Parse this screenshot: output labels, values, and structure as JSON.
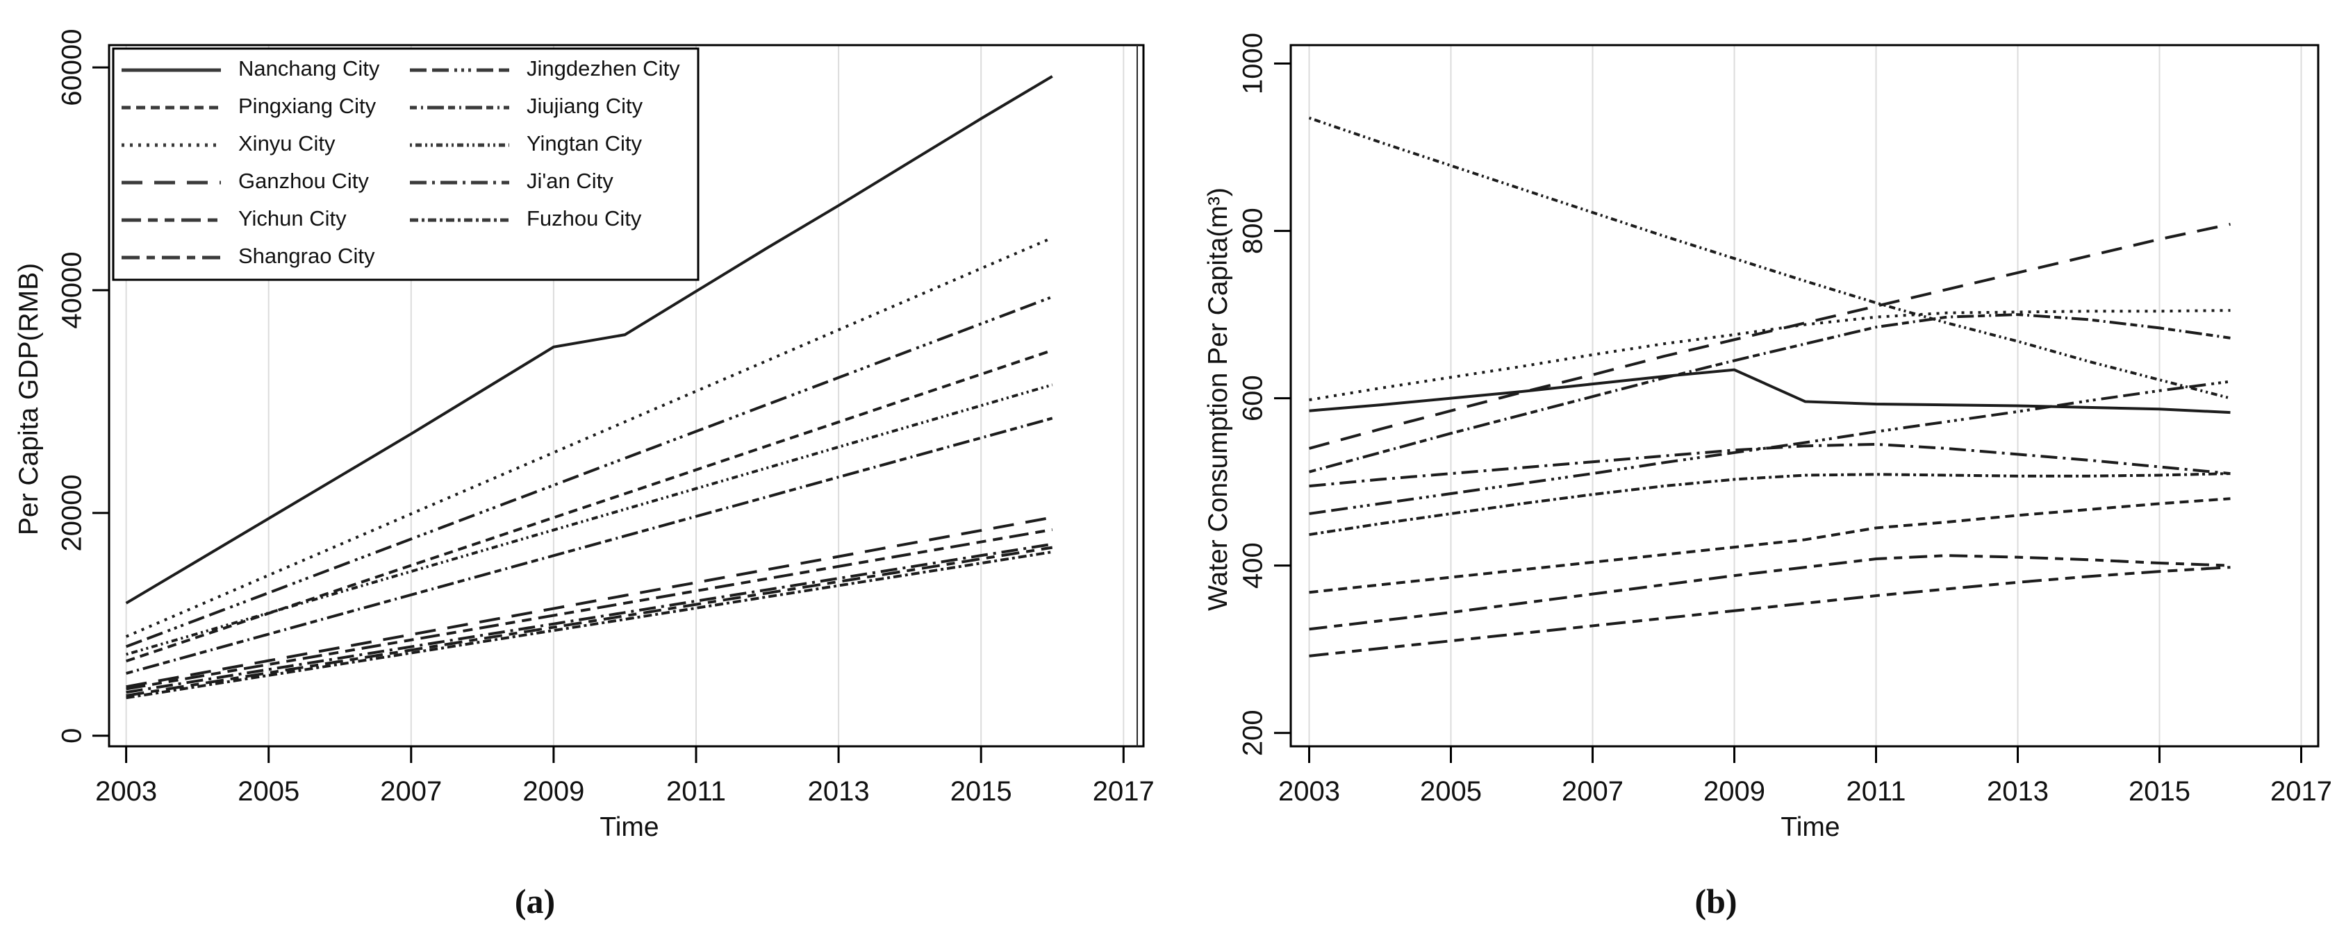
{
  "figure": {
    "background": "#ffffff",
    "line_color": "#1c1c1c",
    "grid_color": "#dcdcdc",
    "text_color": "#111111"
  },
  "chart_data": [
    {
      "type": "line",
      "caption": "(a)",
      "xlabel": "Time",
      "ylabel": "Per Capita GDP(RMB)",
      "x": [
        2003,
        2004,
        2005,
        2006,
        2007,
        2008,
        2009,
        2010,
        2011,
        2012,
        2013,
        2014,
        2015,
        2016
      ],
      "xlim": [
        2002.76,
        2017.28
      ],
      "ylim": [
        -950,
        62000
      ],
      "xticks": [
        2003,
        2005,
        2007,
        2009,
        2011,
        2013,
        2015,
        2017
      ],
      "xtick_labels": [
        "2003",
        "2005",
        "2007",
        "2009",
        "2011",
        "2013",
        "2015",
        "2017"
      ],
      "yticks": [
        0,
        20000,
        40000,
        60000
      ],
      "ytick_labels": [
        "0",
        "20000",
        "40000",
        "60000"
      ],
      "grid": "vertical",
      "legend_position": "top-left",
      "legend_columns": [
        [
          "Nanchang City",
          "Pingxiang City",
          "Xinyu City",
          "Ganzhou City",
          "Yichun City",
          "Shangrao City"
        ],
        [
          "Jingdezhen City",
          "Jiujiang City",
          "Yingtan City",
          "Ji'an City",
          "Fuzhou City"
        ]
      ],
      "series": [
        {
          "name": "Nanchang City",
          "dash": "solid",
          "values": [
            11900,
            15700,
            19500,
            23300,
            27100,
            31000,
            34900,
            36000,
            39900,
            43800,
            47600,
            51500,
            55400,
            59200
          ]
        },
        {
          "name": "Pingxiang City",
          "dash": "dash",
          "values": [
            6700,
            8850,
            10990,
            13140,
            15290,
            17430,
            19580,
            21720,
            23870,
            26020,
            28160,
            30310,
            32450,
            34600
          ]
        },
        {
          "name": "Xinyu City",
          "dash": "dot",
          "values": [
            8900,
            11650,
            14410,
            17160,
            19920,
            22670,
            25420,
            28180,
            30930,
            33680,
            36440,
            39190,
            41950,
            44700
          ]
        },
        {
          "name": "Ganzhou City",
          "dash": "longdash",
          "values": [
            4400,
            5570,
            6740,
            7910,
            9080,
            10250,
            11420,
            12590,
            13750,
            14920,
            16090,
            17260,
            18430,
            19600
          ]
        },
        {
          "name": "Yichun City",
          "dash": "long-short-short",
          "values": [
            4200,
            5300,
            6400,
            7500,
            8600,
            9700,
            10800,
            11900,
            13000,
            14100,
            15200,
            16300,
            17400,
            18500
          ]
        },
        {
          "name": "Shangrao City",
          "dash": "dash-dot",
          "values": [
            3600,
            4620,
            5650,
            6670,
            7690,
            8720,
            9740,
            10760,
            11790,
            12810,
            13830,
            14850,
            15880,
            16900
          ]
        },
        {
          "name": "Jingdezhen City",
          "dash": "longdash-3dots",
          "values": [
            8000,
            10420,
            12830,
            15250,
            17660,
            20080,
            22490,
            24910,
            27320,
            29740,
            32150,
            34570,
            36980,
            39400
          ]
        },
        {
          "name": "Jiujiang City",
          "dash": "short-dot-long",
          "values": [
            5600,
            7360,
            9120,
            10890,
            12650,
            14410,
            16170,
            17930,
            19690,
            21450,
            23220,
            24980,
            26740,
            28500
          ]
        },
        {
          "name": "Yingtan City",
          "dash": "fine-dash-dot",
          "values": [
            7300,
            9160,
            11020,
            12890,
            14750,
            16610,
            18470,
            20330,
            22190,
            24050,
            25920,
            27780,
            29640,
            31500
          ]
        },
        {
          "name": "Ji'an City",
          "dash": "longdash-dot",
          "values": [
            3900,
            4920,
            5950,
            6970,
            7990,
            9020,
            10040,
            11060,
            12090,
            13110,
            14130,
            15150,
            16180,
            17200
          ]
        },
        {
          "name": "Fuzhou City",
          "dash": "dash-dot-dot",
          "values": [
            3400,
            4410,
            5420,
            6420,
            7430,
            8440,
            9450,
            10450,
            11460,
            12470,
            13480,
            14480,
            15490,
            16500
          ]
        }
      ]
    },
    {
      "type": "line",
      "caption": "(b)",
      "xlabel": "Time",
      "ylabel": "Water Consumption Per Capita(m³)",
      "x": [
        2003,
        2004,
        2005,
        2006,
        2007,
        2008,
        2009,
        2010,
        2011,
        2012,
        2013,
        2014,
        2015,
        2016
      ],
      "xlim": [
        2002.74,
        2017.24
      ],
      "ylim": [
        184,
        1022
      ],
      "xticks": [
        2003,
        2005,
        2007,
        2009,
        2011,
        2013,
        2015,
        2017
      ],
      "xtick_labels": [
        "2003",
        "2005",
        "2007",
        "2009",
        "2011",
        "2013",
        "2015",
        "2017"
      ],
      "yticks": [
        200,
        400,
        600,
        800,
        1000
      ],
      "ytick_labels": [
        "200",
        "400",
        "600",
        "800",
        "1000"
      ],
      "grid": "vertical",
      "legend_position": "none",
      "legend_columns": [],
      "series": [
        {
          "name": "Nanchang City",
          "dash": "solid",
          "values": [
            585,
            592,
            600,
            608,
            617,
            626,
            634,
            596,
            593,
            592,
            591,
            589,
            587,
            583
          ]
        },
        {
          "name": "Pingxiang City",
          "dash": "dash",
          "values": [
            368,
            377,
            386,
            395,
            404,
            413,
            422,
            431,
            445,
            452,
            460,
            467,
            474,
            480
          ]
        },
        {
          "name": "Xinyu City",
          "dash": "dot",
          "values": [
            598,
            612,
            625,
            638,
            652,
            665,
            676,
            688,
            697,
            702,
            703,
            704,
            704,
            705
          ]
        },
        {
          "name": "Ganzhou City",
          "dash": "longdash",
          "values": [
            540,
            563,
            585,
            607,
            628,
            650,
            670,
            690,
            710,
            730,
            750,
            770,
            790,
            808
          ]
        },
        {
          "name": "Yichun City",
          "dash": "long-short-short",
          "values": [
            292,
            301,
            310,
            319,
            328,
            337,
            346,
            355,
            364,
            372,
            380,
            387,
            393,
            398
          ]
        },
        {
          "name": "Shangrao City",
          "dash": "dash-dot",
          "values": [
            324,
            334,
            344,
            355,
            366,
            377,
            388,
            398,
            408,
            412,
            410,
            407,
            403,
            400
          ]
        },
        {
          "name": "Jingdezhen City",
          "dash": "longdash-3dots",
          "values": [
            462,
            474,
            486,
            498,
            510,
            523,
            535,
            547,
            560,
            572,
            584,
            597,
            609,
            620
          ]
        },
        {
          "name": "Jiujiang City",
          "dash": "short-dot-long",
          "values": [
            512,
            535,
            558,
            580,
            602,
            624,
            645,
            665,
            685,
            697,
            700,
            694,
            684,
            672
          ]
        },
        {
          "name": "Yingtan City",
          "dash": "fine-dash-dot",
          "values": [
            935,
            906,
            878,
            850,
            822,
            794,
            767,
            740,
            714,
            690,
            668,
            644,
            622,
            600
          ]
        },
        {
          "name": "Ji'an City",
          "dash": "longdash-dot",
          "values": [
            495,
            503,
            510,
            517,
            524,
            531,
            538,
            543,
            545,
            540,
            533,
            526,
            518,
            510
          ]
        },
        {
          "name": "Fuzhou City",
          "dash": "dash-dot-dot",
          "values": [
            437,
            450,
            462,
            474,
            485,
            495,
            503,
            508,
            509,
            508,
            507,
            507,
            508,
            510
          ]
        }
      ]
    }
  ]
}
